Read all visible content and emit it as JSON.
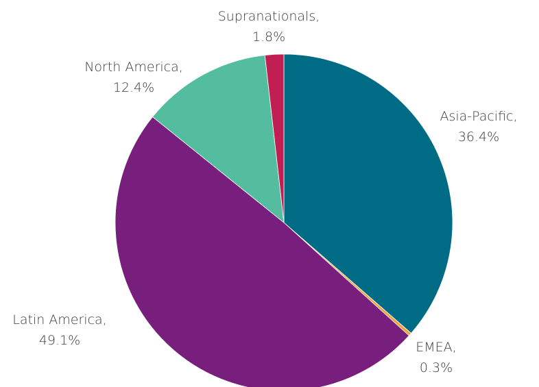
{
  "chart_data": {
    "type": "pie",
    "title": "",
    "start_angle_deg": 0,
    "direction": "clockwise",
    "slices": [
      {
        "label": "Asia-Pacific,",
        "value_text": "36.4%",
        "value": 36.4,
        "color": "#006b84"
      },
      {
        "label": "EMEA,",
        "value_text": "0.3%",
        "value": 0.3,
        "color": "#f2a23a"
      },
      {
        "label": "Latin America,",
        "value_text": "49.1%",
        "value": 49.1,
        "color": "#781f7d"
      },
      {
        "label": "North America,",
        "value_text": "12.4%",
        "value": 12.4,
        "color": "#54bc9f"
      },
      {
        "label": "Supranationals,",
        "value_text": "1.8%",
        "value": 1.8,
        "color": "#c01f54"
      }
    ]
  }
}
